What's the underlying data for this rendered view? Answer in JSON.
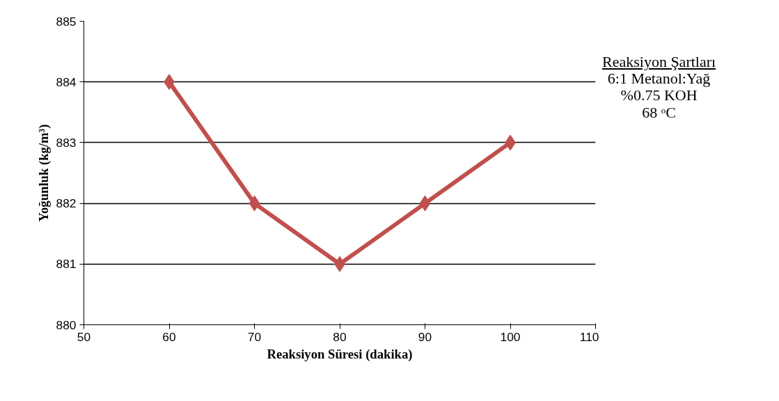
{
  "chart_data": {
    "type": "line",
    "xlabel": "Reaksiyon Süresi (dakika)",
    "ylabel": "Yoğunluk (kg/m³)",
    "x": [
      60,
      70,
      80,
      90,
      100
    ],
    "series": [
      {
        "color": "#c0504d",
        "values": [
          884,
          882,
          881,
          882,
          883
        ]
      }
    ],
    "xlim": [
      50,
      110
    ],
    "xticks": [
      50,
      60,
      70,
      80,
      90,
      100,
      110
    ],
    "ylim": [
      880,
      885
    ],
    "yticks": [
      880,
      881,
      882,
      883,
      884,
      885
    ],
    "grid": "y",
    "marker": "diamond",
    "line_style": "solid",
    "annotations": [
      "Reaksiyon Şartları",
      "6:1 Metanol:Yağ",
      "%0.75 KOH",
      "68 ᵒC"
    ]
  }
}
